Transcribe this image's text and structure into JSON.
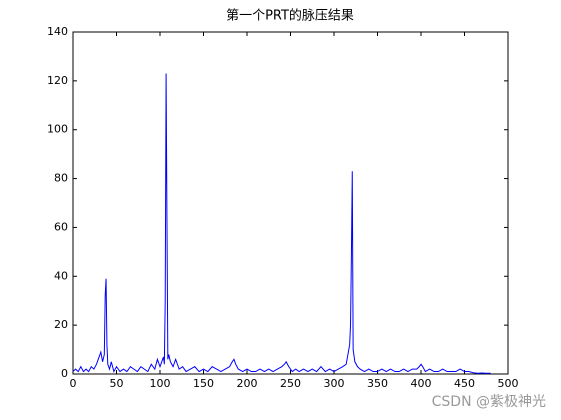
{
  "chart_data": {
    "type": "line",
    "title": "第一个PRT的脉压结果",
    "x": [
      0,
      3,
      6,
      9,
      12,
      15,
      18,
      21,
      24,
      27,
      30,
      32,
      34,
      36,
      37,
      38,
      39,
      40,
      42,
      44,
      47,
      50,
      54,
      58,
      62,
      66,
      70,
      74,
      78,
      82,
      86,
      90,
      94,
      97,
      100,
      102,
      104,
      105,
      106,
      107,
      108,
      109,
      110,
      112,
      115,
      118,
      122,
      126,
      130,
      135,
      140,
      145,
      150,
      155,
      160,
      165,
      170,
      175,
      180,
      183,
      185,
      187,
      190,
      195,
      200,
      205,
      210,
      215,
      220,
      225,
      230,
      235,
      240,
      243,
      245,
      248,
      252,
      256,
      260,
      265,
      270,
      275,
      280,
      285,
      290,
      295,
      300,
      305,
      310,
      314,
      316,
      318,
      319,
      320,
      321,
      322,
      324,
      327,
      330,
      335,
      340,
      345,
      350,
      355,
      360,
      365,
      370,
      375,
      380,
      385,
      390,
      395,
      398,
      400,
      402,
      405,
      410,
      415,
      420,
      425,
      430,
      435,
      440,
      445,
      450,
      455,
      460,
      465,
      470,
      475,
      480
    ],
    "values": [
      1,
      2,
      1,
      3,
      1,
      2,
      1,
      3,
      2,
      4,
      7,
      9,
      5,
      8,
      32,
      39,
      12,
      4,
      2,
      5,
      1,
      3,
      1,
      2,
      1,
      3,
      2,
      1,
      3,
      2,
      1,
      4,
      2,
      6,
      3,
      5,
      7,
      4,
      30,
      123,
      63,
      6,
      8,
      5,
      3,
      6,
      2,
      3,
      1,
      2,
      3,
      1,
      2,
      1,
      3,
      2,
      1,
      2,
      3,
      5,
      6,
      4,
      2,
      1,
      2,
      1,
      1,
      2,
      1,
      2,
      1,
      2,
      3,
      4,
      5,
      3,
      1,
      2,
      1,
      2,
      1,
      2,
      1,
      3,
      1,
      2,
      1,
      2,
      3,
      4,
      8,
      12,
      20,
      48,
      83,
      10,
      5,
      3,
      2,
      1,
      2,
      1,
      1,
      2,
      1,
      2,
      1,
      1,
      2,
      1,
      2,
      2,
      3,
      4,
      3,
      1,
      2,
      1,
      1,
      2,
      1,
      1,
      1,
      2,
      1,
      1,
      0.5,
      0.3,
      0.4,
      0.3,
      0.3
    ],
    "color": "#0000ff",
    "xlim": [
      0,
      500
    ],
    "xticks": [
      0,
      50,
      100,
      150,
      200,
      250,
      300,
      350,
      400,
      450,
      500
    ],
    "ylim": [
      0,
      140
    ],
    "yticks": [
      0,
      20,
      40,
      60,
      80,
      100,
      120,
      140
    ]
  },
  "watermark": "CSDN @紫极神光"
}
